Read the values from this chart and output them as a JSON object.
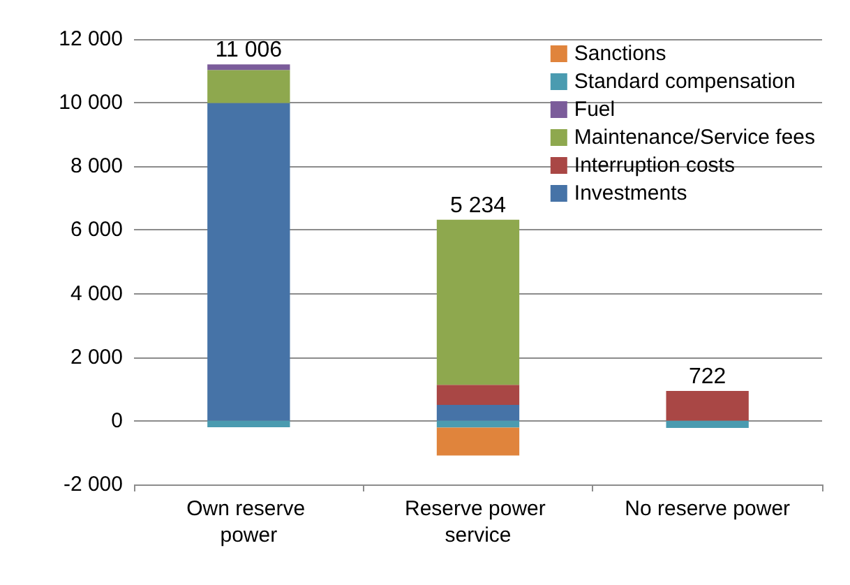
{
  "chart_data": {
    "type": "bar",
    "stacked": true,
    "categories": [
      "Own reserve power",
      "Reserve power service",
      "No reserve power"
    ],
    "series": [
      {
        "name": "Investments",
        "color": "#4673a7",
        "values": [
          9990,
          500,
          0
        ]
      },
      {
        "name": "Interruption costs",
        "color": "#a94745",
        "values": [
          0,
          630,
          942
        ]
      },
      {
        "name": "Maintenance/Service fees",
        "color": "#8ea84e",
        "values": [
          1040,
          5194,
          0
        ]
      },
      {
        "name": "Fuel",
        "color": "#7b5c9a",
        "values": [
          176,
          0,
          0
        ]
      },
      {
        "name": "Standard compensation",
        "color": "#4a9bb0",
        "values": [
          -200,
          -210,
          -220
        ]
      },
      {
        "name": "Sanctions",
        "color": "#e0843c",
        "values": [
          0,
          -880,
          0
        ]
      }
    ],
    "totals": [
      "11 006",
      "5 234",
      "722"
    ],
    "ylim": [
      -2000,
      12000
    ],
    "yticks": [
      {
        "value": -2000,
        "label": "-2 000"
      },
      {
        "value": 0,
        "label": "0"
      },
      {
        "value": 2000,
        "label": "2 000"
      },
      {
        "value": 4000,
        "label": "4 000"
      },
      {
        "value": 6000,
        "label": "6 000"
      },
      {
        "value": 8000,
        "label": "8 000"
      },
      {
        "value": 10000,
        "label": "10 000"
      },
      {
        "value": 12000,
        "label": "12 000"
      }
    ],
    "grid": "y",
    "legend": "top right"
  }
}
